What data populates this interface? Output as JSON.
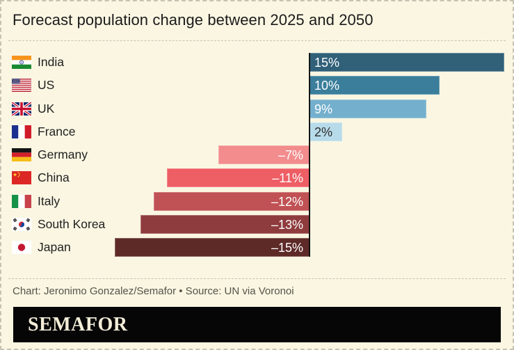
{
  "title": "Forecast population change between 2025 and 2050",
  "attribution": "Chart: Jeronimo Gonzalez/Semafor • Source: UN via Voronoi",
  "logo": "SEMAFOR",
  "colors": {
    "background": "#faf6e2",
    "border_dashed": "#c6c3b2",
    "axis": "#141414",
    "title_text": "#1b1b1b",
    "attribution_text": "#55534a",
    "logo_background": "#060606",
    "logo_text": "#f3edd8"
  },
  "chart_data": {
    "type": "bar",
    "orientation": "horizontal",
    "title": "Forecast population change between 2025 and 2050",
    "xlabel": "",
    "ylabel": "",
    "unit": "%",
    "xlim": [
      -15,
      15
    ],
    "grid": false,
    "legend": false,
    "baseline": 0,
    "categories": [
      "India",
      "US",
      "UK",
      "France",
      "Germany",
      "China",
      "Italy",
      "South Korea",
      "Japan"
    ],
    "values": [
      15,
      10,
      9,
      2,
      -7,
      -11,
      -12,
      -13,
      -15
    ],
    "value_labels": [
      "15%",
      "10%",
      "9%",
      "2%",
      "–7%",
      "–11%",
      "–12%",
      "–13%",
      "–15%"
    ],
    "bar_colors": [
      "#316079",
      "#3a7e9b",
      "#74b0cd",
      "#b8dbea",
      "#f28c8d",
      "#ee5e65",
      "#c05154",
      "#8f3c3e",
      "#5d2a28"
    ],
    "value_label_colors": [
      "#ffffff",
      "#ffffff",
      "#ffffff",
      "#2d2d2d",
      "#ffffff",
      "#ffffff",
      "#ffffff",
      "#ffffff",
      "#ffffff"
    ],
    "flag_icons": [
      "flag-india-icon",
      "flag-us-icon",
      "flag-uk-icon",
      "flag-france-icon",
      "flag-germany-icon",
      "flag-china-icon",
      "flag-italy-icon",
      "flag-south-korea-icon",
      "flag-japan-icon"
    ]
  }
}
